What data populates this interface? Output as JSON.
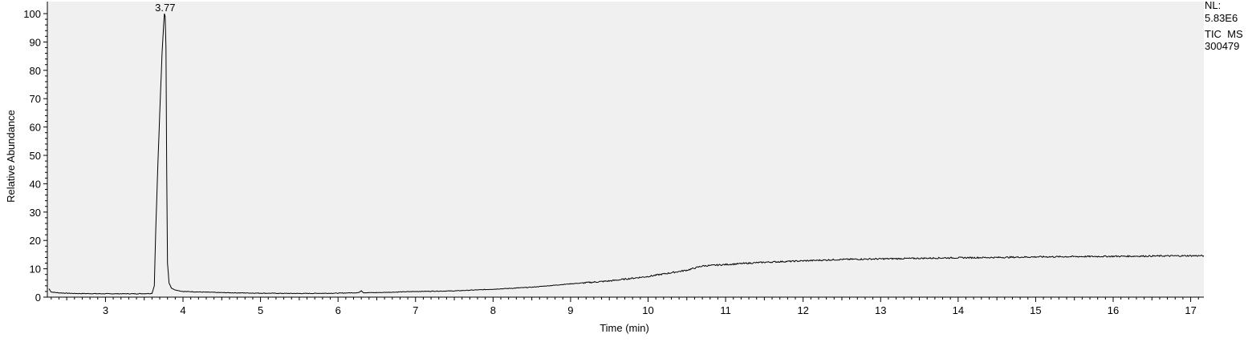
{
  "chart_data": {
    "type": "line",
    "title": "",
    "xlabel": "Time (min)",
    "ylabel": "Relative Abundance",
    "xlim": [
      2.25,
      17.17
    ],
    "ylim": [
      0,
      100
    ],
    "x_ticks": [
      3,
      4,
      5,
      6,
      7,
      8,
      9,
      10,
      11,
      12,
      13,
      14,
      15,
      16,
      17
    ],
    "y_ticks": [
      0,
      10,
      20,
      30,
      40,
      50,
      60,
      70,
      80,
      90,
      100
    ],
    "grid": false,
    "plot_background": "#f0f0f0",
    "line_color": "#000000",
    "peak_annotations": [
      {
        "x": 3.77,
        "y": 100,
        "label": "3.77"
      }
    ],
    "info": {
      "nl_label": "NL:",
      "nl_value": "5.83E6",
      "scan_filter": "TIC  MS",
      "sample": "300479"
    },
    "series": [
      {
        "x": [
          2.27,
          2.3,
          2.4,
          2.6,
          3.0,
          3.4,
          3.6,
          3.63,
          3.65,
          3.68,
          3.71,
          3.73,
          3.75,
          3.76,
          3.77,
          3.78,
          3.79,
          3.8,
          3.82,
          3.85,
          3.9,
          4.0,
          4.5,
          5.0,
          5.5,
          6.0,
          6.27,
          6.3,
          6.33,
          6.5,
          7.0,
          7.5,
          8.0,
          8.5,
          9.0,
          9.5,
          10.0,
          10.5,
          10.7,
          11.0,
          11.5,
          12.0,
          12.5,
          13.0,
          13.5,
          14.0,
          14.5,
          15.0,
          15.5,
          16.0,
          16.5,
          17.0,
          17.17
        ],
        "y": [
          3.0,
          1.8,
          1.5,
          1.3,
          1.2,
          1.2,
          1.3,
          4.0,
          25.0,
          50.0,
          72.0,
          86.0,
          96.0,
          100.0,
          99.0,
          88.0,
          45.0,
          12.0,
          5.0,
          3.2,
          2.5,
          2.0,
          1.6,
          1.4,
          1.3,
          1.4,
          1.6,
          2.3,
          1.6,
          1.6,
          2.0,
          2.2,
          2.8,
          3.5,
          4.7,
          5.7,
          7.3,
          9.5,
          11.0,
          11.5,
          12.3,
          12.8,
          13.3,
          13.5,
          13.7,
          13.9,
          14.0,
          14.2,
          14.3,
          14.4,
          14.5,
          14.6,
          14.6
        ]
      }
    ]
  }
}
